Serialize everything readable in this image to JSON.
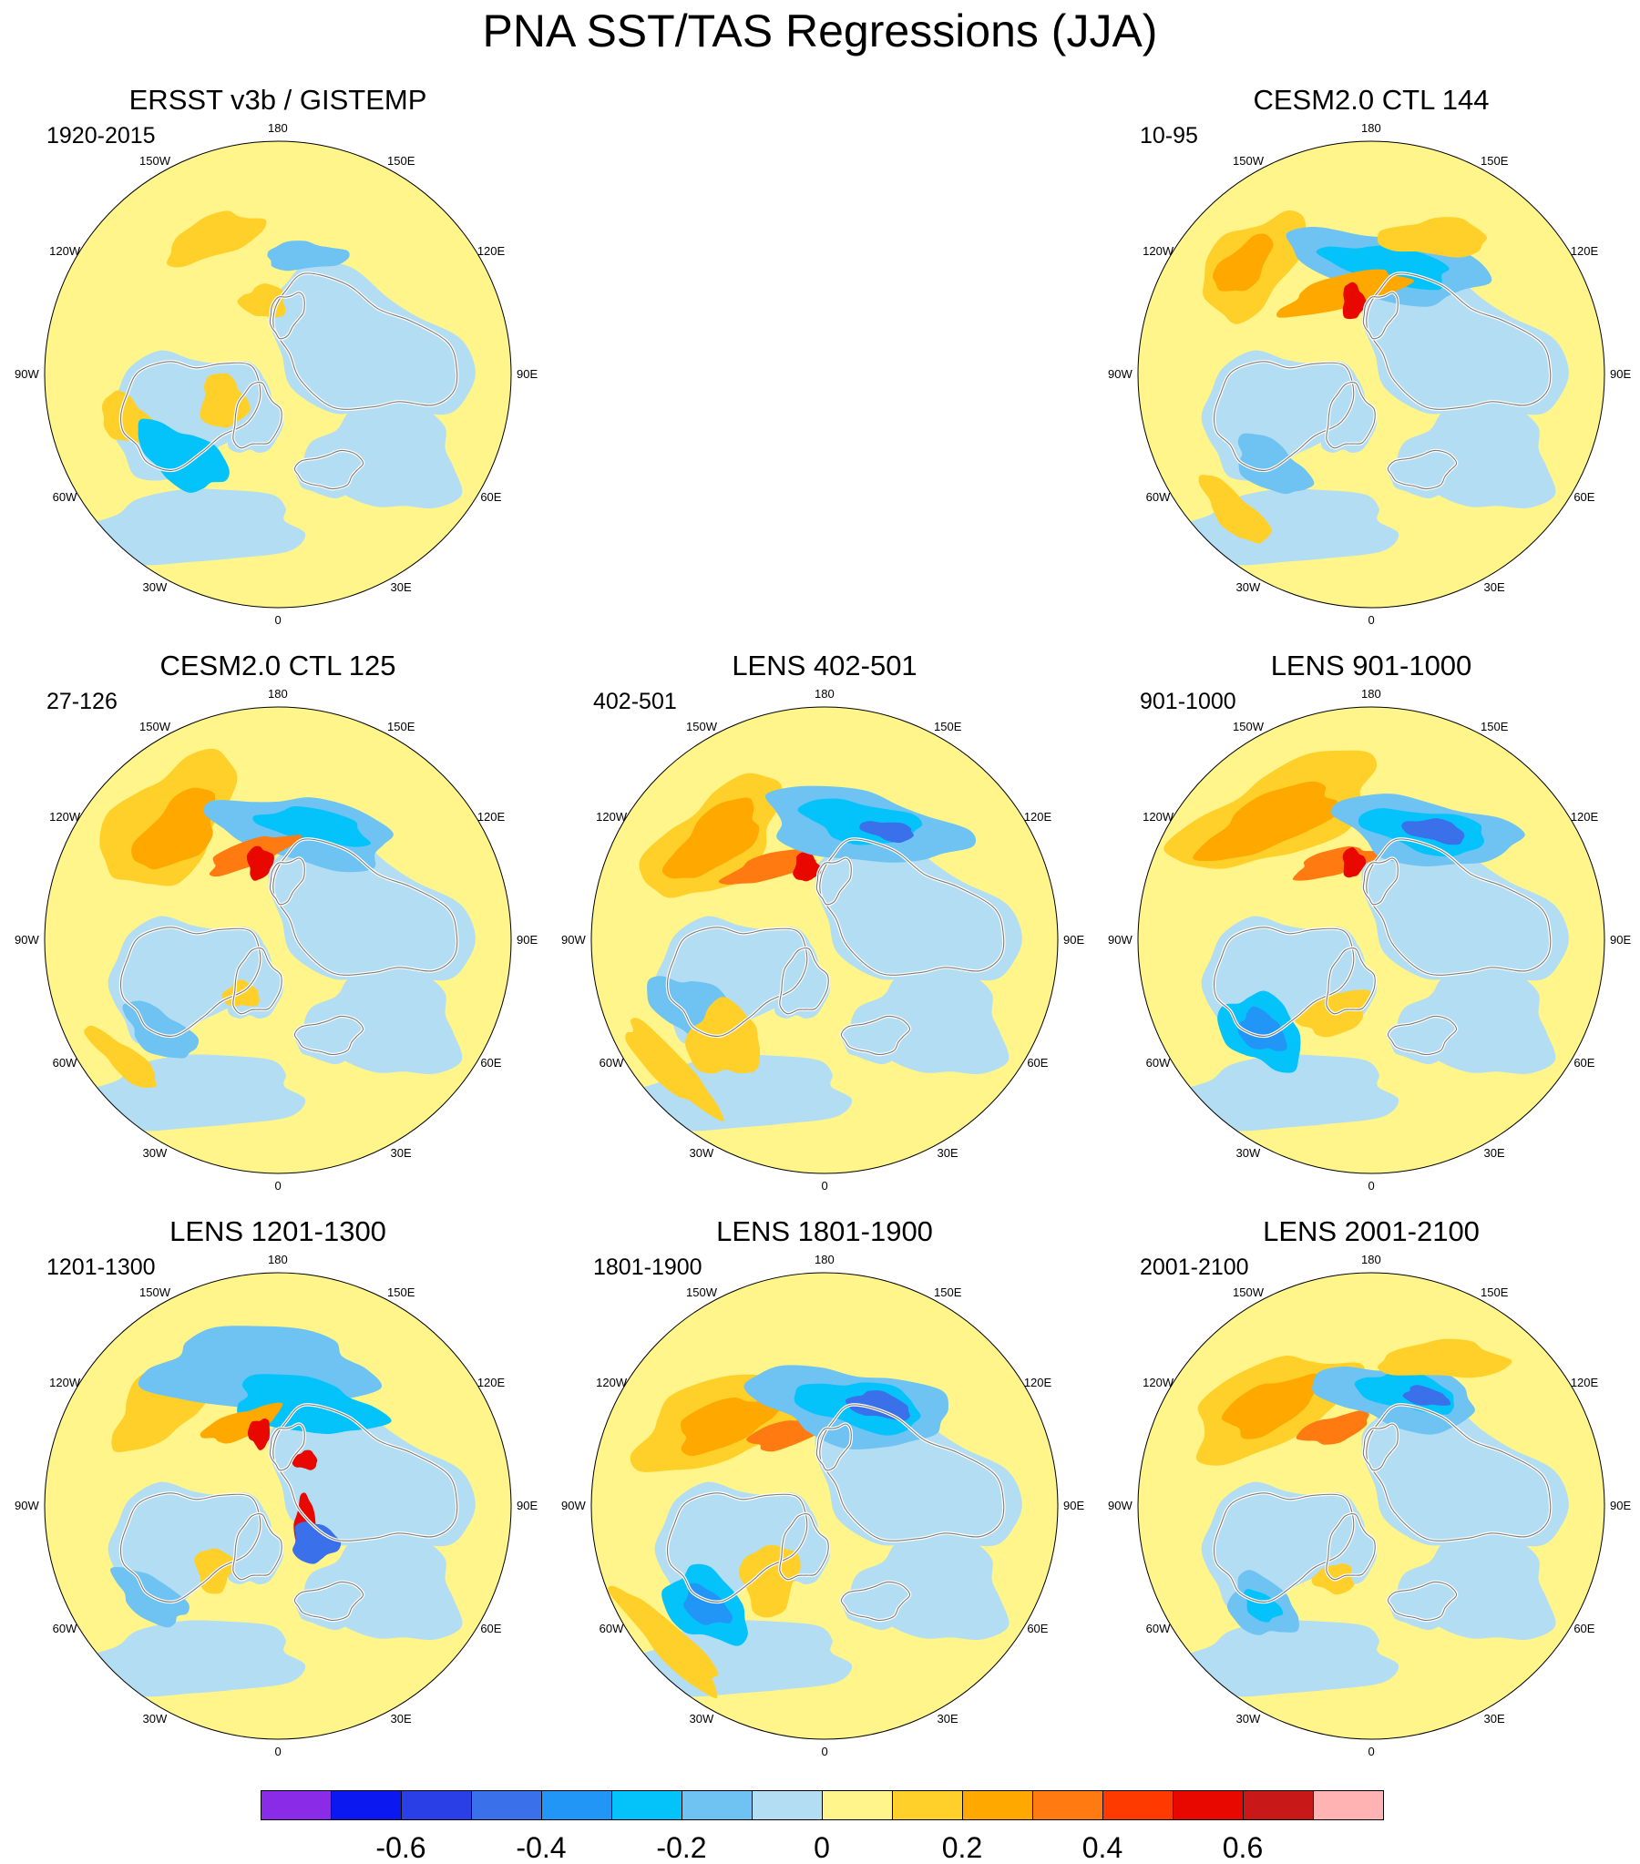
{
  "title": "PNA SST/TAS Regressions (JJA)",
  "longitude_labels": [
    "180",
    "150E",
    "120E",
    "90E",
    "60E",
    "30E",
    "0",
    "30W",
    "60W",
    "90W",
    "120W",
    "150W"
  ],
  "panels": [
    {
      "id": "ersst",
      "title": "ERSST v3b / GISTEMP",
      "period": "1920-2015"
    },
    {
      "id": "ctl144",
      "title": "CESM2.0 CTL 144",
      "period": "10-95"
    },
    {
      "id": "ctl125",
      "title": "CESM2.0 CTL 125",
      "period": "27-126"
    },
    {
      "id": "lens402",
      "title": "LENS 402-501",
      "period": "402-501"
    },
    {
      "id": "lens901",
      "title": "LENS 901-1000",
      "period": "901-1000"
    },
    {
      "id": "lens1201",
      "title": "LENS 1201-1300",
      "period": "1201-1300"
    },
    {
      "id": "lens1801",
      "title": "LENS 1801-1900",
      "period": "1801-1900"
    },
    {
      "id": "lens2001",
      "title": "LENS 2001-2100",
      "period": "2001-2100"
    }
  ],
  "colorbar": {
    "colors": [
      "#8a2be8",
      "#0c18f0",
      "#2a40e6",
      "#3a70ea",
      "#2196f7",
      "#04c3fa",
      "#6ec3f2",
      "#b3ddf3",
      "#fff58a",
      "#ffd02a",
      "#ffa800",
      "#ff7a10",
      "#ff3a00",
      "#e80800",
      "#c81818",
      "#ffb3b3"
    ],
    "tick_labels": [
      "-0.6",
      "-0.4",
      "-0.2",
      "0",
      "0.2",
      "0.4",
      "0.6"
    ]
  },
  "colors": {
    "land_border": "#ffffff",
    "coast": "#7a7a7a"
  }
}
